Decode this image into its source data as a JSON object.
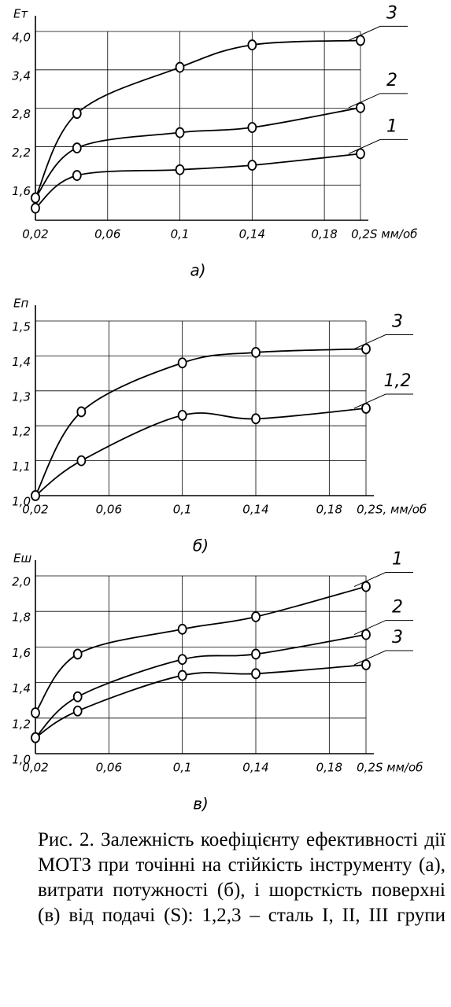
{
  "chart_data": [
    {
      "type": "line",
      "ylabel": "Ет",
      "xlabel": "S мм/об",
      "panel": "а)",
      "x": [
        0.02,
        0.043,
        0.1,
        0.14,
        0.2
      ],
      "series": [
        {
          "name": "3",
          "color": "#000000",
          "values": [
            1.4,
            2.72,
            3.44,
            3.79,
            3.86
          ]
        },
        {
          "name": "2",
          "color": "#000000",
          "values": [
            1.4,
            2.18,
            2.42,
            2.5,
            2.81
          ]
        },
        {
          "name": "1",
          "color": "#000000",
          "values": [
            1.24,
            1.75,
            1.84,
            1.91,
            2.09
          ]
        }
      ],
      "xlim": [
        0.02,
        0.2
      ],
      "xticks": [
        {
          "value": 0.02,
          "label": "0,02"
        },
        {
          "value": 0.06,
          "label": "0,06"
        },
        {
          "value": 0.1,
          "label": "0,1"
        },
        {
          "value": 0.14,
          "label": "0,14"
        },
        {
          "value": 0.18,
          "label": "0,18"
        },
        {
          "value": 0.2,
          "label": "0,2"
        }
      ],
      "ylim": [
        1.05,
        4.0
      ],
      "yticks": [
        {
          "value": 1.6,
          "label": "1,6"
        },
        {
          "value": 2.2,
          "label": "2,2"
        },
        {
          "value": 2.8,
          "label": "2,8"
        },
        {
          "value": 3.4,
          "label": "3,4"
        },
        {
          "value": 4.0,
          "label": "4,0"
        }
      ],
      "grid": true
    },
    {
      "type": "line",
      "ylabel": "Еп",
      "xlabel": "S, мм/об",
      "panel": "б)",
      "x": [
        0.02,
        0.045,
        0.1,
        0.14,
        0.2
      ],
      "series": [
        {
          "name": "3",
          "color": "#000000",
          "values": [
            1.0,
            1.24,
            1.38,
            1.41,
            1.42
          ]
        },
        {
          "name": "1,2",
          "color": "#000000",
          "values": [
            1.0,
            1.1,
            1.23,
            1.22,
            1.25
          ]
        }
      ],
      "xlim": [
        0.02,
        0.2
      ],
      "xticks": [
        {
          "value": 0.02,
          "label": "0,02"
        },
        {
          "value": 0.06,
          "label": "0,06"
        },
        {
          "value": 0.1,
          "label": "0,1"
        },
        {
          "value": 0.14,
          "label": "0,14"
        },
        {
          "value": 0.18,
          "label": "0,18"
        },
        {
          "value": 0.2,
          "label": "0,2"
        }
      ],
      "ylim": [
        1.0,
        1.5
      ],
      "yticks": [
        {
          "value": 1.0,
          "label": "1,0"
        },
        {
          "value": 1.1,
          "label": "1,1"
        },
        {
          "value": 1.2,
          "label": "1,2"
        },
        {
          "value": 1.3,
          "label": "1,3"
        },
        {
          "value": 1.4,
          "label": "1,4"
        },
        {
          "value": 1.5,
          "label": "1,5"
        }
      ],
      "grid": true
    },
    {
      "type": "line",
      "ylabel": "Еш",
      "xlabel": "S мм/об",
      "panel": "в)",
      "x": [
        0.02,
        0.043,
        0.1,
        0.14,
        0.2
      ],
      "series": [
        {
          "name": "1",
          "color": "#000000",
          "values": [
            1.23,
            1.56,
            1.7,
            1.77,
            1.94
          ]
        },
        {
          "name": "2",
          "color": "#000000",
          "values": [
            1.09,
            1.32,
            1.53,
            1.56,
            1.67
          ]
        },
        {
          "name": "3",
          "color": "#000000",
          "values": [
            1.09,
            1.24,
            1.44,
            1.45,
            1.5
          ]
        }
      ],
      "xlim": [
        0.02,
        0.2
      ],
      "xticks": [
        {
          "value": 0.02,
          "label": "0,02"
        },
        {
          "value": 0.06,
          "label": "0,06"
        },
        {
          "value": 0.1,
          "label": "0,1"
        },
        {
          "value": 0.14,
          "label": "0,14"
        },
        {
          "value": 0.18,
          "label": "0,18"
        },
        {
          "value": 0.2,
          "label": "0,2"
        }
      ],
      "ylim": [
        1.0,
        2.0
      ],
      "yticks": [
        {
          "value": 1.0,
          "label": "1,0"
        },
        {
          "value": 1.2,
          "label": "1,2"
        },
        {
          "value": 1.4,
          "label": "1,4"
        },
        {
          "value": 1.6,
          "label": "1,6"
        },
        {
          "value": 1.8,
          "label": "1,8"
        },
        {
          "value": 2.0,
          "label": "2,0"
        }
      ],
      "grid": true
    }
  ],
  "caption": "Рис. 2. Залежність коефіцієнту ефективності дії МОТЗ при точінні на стійкість інструменту (а), витрати потужності (б), і шорсткість поверхні (в) від подачі (S): 1,2,3 – сталь I, II, III групи"
}
